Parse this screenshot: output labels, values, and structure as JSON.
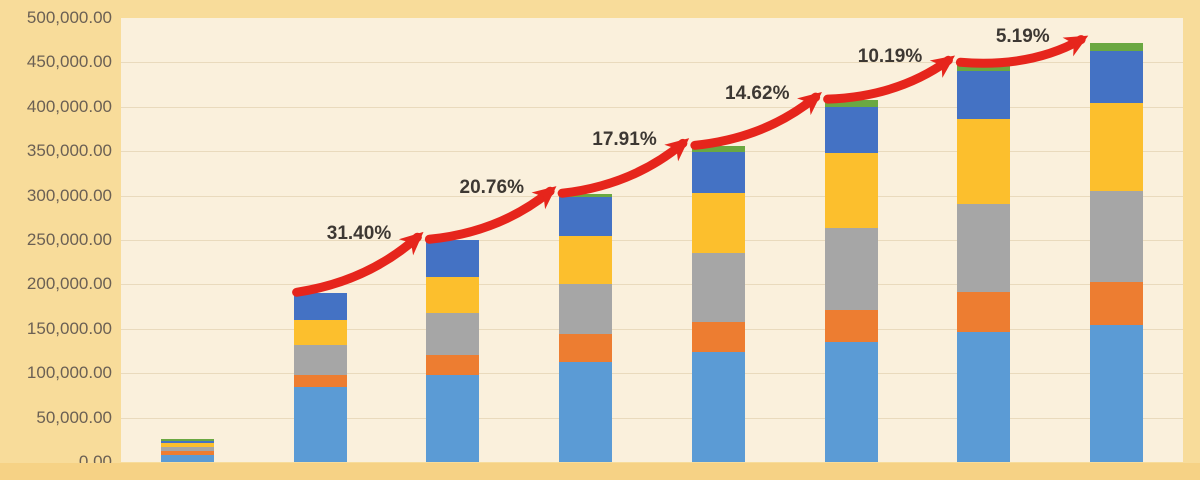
{
  "chart_data": {
    "type": "bar",
    "stacked": true,
    "title": "",
    "xlabel": "",
    "ylabel": "",
    "ylim": [
      0,
      500000
    ],
    "grid": true,
    "legend": "none",
    "x_axis_labels": [],
    "y_ticks": [
      "500,000.00",
      "450,000.00",
      "400,000.00",
      "350,000.00",
      "300,000.00",
      "250,000.00",
      "200,000.00",
      "150,000.00",
      "100,000.00",
      "50,000.00",
      "0.00"
    ],
    "series": [
      {
        "name": "light-blue-segment",
        "color": "#5b9bd5",
        "values": [
          7500,
          85000,
          98000,
          112500,
          124000,
          135500,
          146500,
          153800
        ]
      },
      {
        "name": "orange-segment",
        "color": "#ed7d31",
        "values": [
          4500,
          13000,
          22500,
          32000,
          34000,
          35500,
          45000,
          48500
        ]
      },
      {
        "name": "gray-segment",
        "color": "#a6a6a6",
        "values": [
          5000,
          34000,
          47000,
          56400,
          77000,
          92000,
          99500,
          103000
        ]
      },
      {
        "name": "yellow-segment",
        "color": "#fcbf2d",
        "values": [
          4000,
          28000,
          41000,
          54000,
          67500,
          84500,
          95500,
          99500
        ]
      },
      {
        "name": "dark-blue-segment",
        "color": "#4472c4",
        "values": [
          3000,
          30000,
          41200,
          43000,
          46500,
          52500,
          53500,
          58500
        ]
      },
      {
        "name": "green-segment",
        "color": "#6aa842",
        "values": [
          2000,
          0,
          0,
          3600,
          6500,
          7500,
          9000,
          9000
        ]
      }
    ],
    "bar_totals_approx": [
      26000,
      190000,
      249700,
      301500,
      355500,
      407500,
      449000,
      472300
    ],
    "growth_labels": [
      {
        "from_bar": 2,
        "to_bar": 3,
        "label": "31.40%"
      },
      {
        "from_bar": 3,
        "to_bar": 4,
        "label": "20.76%"
      },
      {
        "from_bar": 4,
        "to_bar": 5,
        "label": "17.91%"
      },
      {
        "from_bar": 5,
        "to_bar": 6,
        "label": "14.62%"
      },
      {
        "from_bar": 6,
        "to_bar": 7,
        "label": "10.19%"
      },
      {
        "from_bar": 7,
        "to_bar": 8,
        "label": "5.19%"
      }
    ]
  },
  "style": {
    "background_outer": "#f8dc9a",
    "background_plot": "#faf0dc",
    "footer_strip": "#f6d285",
    "gridline": "#e9dabd",
    "tick_color": "#6b6054",
    "label_color": "#3d3833",
    "arrow_red": "#e6251c"
  }
}
